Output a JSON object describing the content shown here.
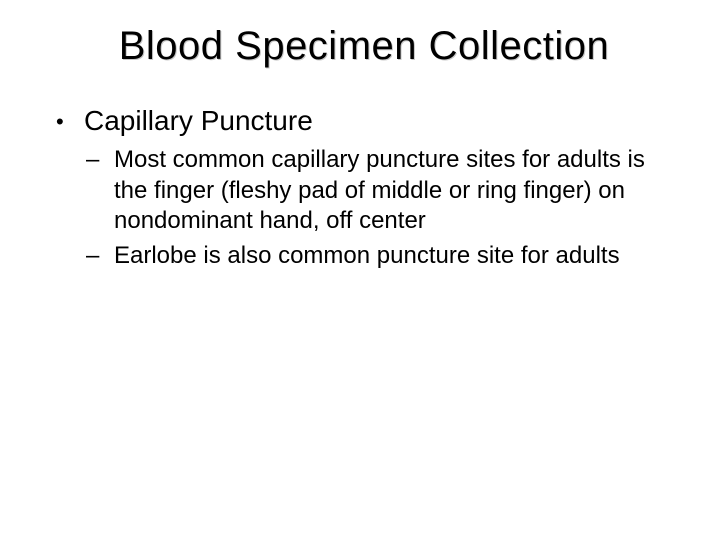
{
  "title": "Blood Specimen Collection",
  "bullets": [
    {
      "text": "Capillary Puncture",
      "children": [
        {
          "text": "Most common capillary puncture sites for adults is the finger (fleshy pad of middle or ring finger) on nondominant hand, off center"
        },
        {
          "text": "Earlobe is also common puncture site for adults"
        }
      ]
    }
  ],
  "colors": {
    "background": "#ffffff",
    "text": "#000000",
    "title_shadow": "#c8c8c8"
  },
  "typography": {
    "title_fontsize": 40,
    "level1_fontsize": 28,
    "level2_fontsize": 24,
    "font_family": "Verdana"
  }
}
